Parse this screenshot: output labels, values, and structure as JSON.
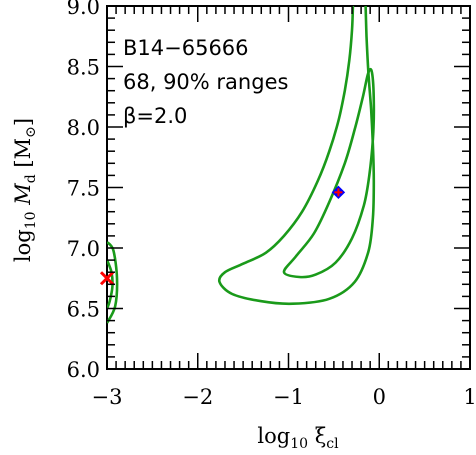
{
  "chart_data": {
    "type": "line",
    "title": "",
    "xlabel": "log10 ξcl",
    "ylabel": "log10 Md [M⊙]",
    "xlim": [
      -3,
      1
    ],
    "ylim": [
      6.0,
      9.0
    ],
    "x_ticks": [
      {
        "value": -3,
        "label": "−3"
      },
      {
        "value": -2,
        "label": "−2"
      },
      {
        "value": -1,
        "label": "−1"
      },
      {
        "value": 0,
        "label": "0"
      },
      {
        "value": 1,
        "label": "1"
      }
    ],
    "y_ticks": [
      {
        "value": 6.0,
        "label": "6.0"
      },
      {
        "value": 6.5,
        "label": "6.5"
      },
      {
        "value": 7.0,
        "label": "7.0"
      },
      {
        "value": 7.5,
        "label": "7.5"
      },
      {
        "value": 8.0,
        "label": "8.0"
      },
      {
        "value": 8.5,
        "label": "8.5"
      },
      {
        "value": 9.0,
        "label": "9.0"
      }
    ],
    "annotations": [
      "B14−65666",
      "68, 90% ranges",
      "β=2.0"
    ],
    "contours": [
      {
        "level": "90%",
        "color": "#1a9a1a",
        "points": [
          [
            -0.15,
            9.0
          ],
          [
            -0.14,
            8.75
          ],
          [
            -0.12,
            8.45
          ],
          [
            -0.09,
            8.15
          ],
          [
            -0.07,
            7.85
          ],
          [
            -0.06,
            7.55
          ],
          [
            -0.07,
            7.25
          ],
          [
            -0.12,
            6.97
          ],
          [
            -0.27,
            6.72
          ],
          [
            -0.55,
            6.58
          ],
          [
            -0.95,
            6.54
          ],
          [
            -1.3,
            6.56
          ],
          [
            -1.62,
            6.62
          ],
          [
            -1.76,
            6.72
          ],
          [
            -1.7,
            6.8
          ],
          [
            -1.5,
            6.87
          ],
          [
            -1.25,
            6.96
          ],
          [
            -1.05,
            7.1
          ],
          [
            -0.85,
            7.3
          ],
          [
            -0.68,
            7.55
          ],
          [
            -0.55,
            7.8
          ],
          [
            -0.45,
            8.05
          ],
          [
            -0.38,
            8.3
          ],
          [
            -0.33,
            8.55
          ],
          [
            -0.3,
            8.8
          ],
          [
            -0.29,
            9.0
          ]
        ],
        "closed": false
      },
      {
        "level": "68%",
        "color": "#1a9a1a",
        "points": [
          [
            -0.08,
            8.45
          ],
          [
            -0.06,
            8.2
          ],
          [
            -0.07,
            7.9
          ],
          [
            -0.11,
            7.6
          ],
          [
            -0.17,
            7.35
          ],
          [
            -0.3,
            7.08
          ],
          [
            -0.48,
            6.88
          ],
          [
            -0.7,
            6.78
          ],
          [
            -0.88,
            6.76
          ],
          [
            -1.05,
            6.8
          ],
          [
            -0.92,
            6.93
          ],
          [
            -0.72,
            7.12
          ],
          [
            -0.55,
            7.38
          ],
          [
            -0.38,
            7.7
          ],
          [
            -0.27,
            7.98
          ],
          [
            -0.18,
            8.25
          ],
          [
            -0.12,
            8.45
          ]
        ],
        "closed": true
      },
      {
        "level": "90%-edge",
        "color": "#1a9a1a",
        "points": [
          [
            -3.0,
            7.05
          ],
          [
            -2.93,
            6.98
          ],
          [
            -2.89,
            6.75
          ],
          [
            -2.91,
            6.52
          ],
          [
            -3.0,
            6.38
          ]
        ],
        "closed": false
      },
      {
        "level": "68%-edge",
        "color": "#1a9a1a",
        "points": [
          [
            -3.0,
            6.9
          ],
          [
            -2.95,
            6.8
          ],
          [
            -2.94,
            6.68
          ],
          [
            -2.97,
            6.56
          ],
          [
            -3.0,
            6.5
          ]
        ],
        "closed": false
      }
    ],
    "markers": [
      {
        "type": "diamond",
        "x": -0.45,
        "y": 7.46,
        "color": "#0000ff"
      },
      {
        "type": "plus",
        "x": -0.45,
        "y": 7.46,
        "color": "#ff0000"
      },
      {
        "type": "cross",
        "x": -3.0,
        "y": 6.75,
        "color": "#ff0000"
      }
    ]
  }
}
